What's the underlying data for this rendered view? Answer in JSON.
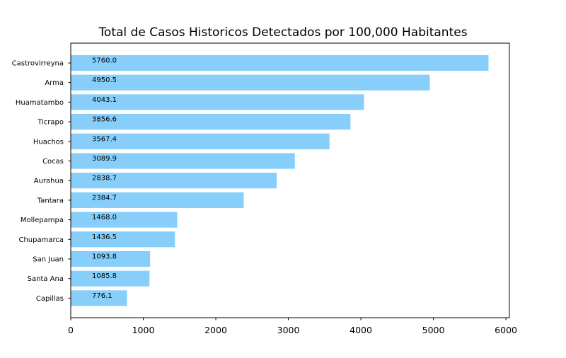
{
  "chart_data": {
    "type": "bar",
    "orientation": "horizontal",
    "title": "Total de Casos Historicos Detectados por 100,000 Habitantes",
    "xlabel": "",
    "ylabel": "",
    "categories": [
      "Castrovirreyna",
      "Arma",
      "Huamatambo",
      "Ticrapo",
      "Huachos",
      "Cocas",
      "Aurahua",
      "Tantara",
      "Mollepampa",
      "Chupamarca",
      "San Juan",
      "Santa Ana",
      "Capillas"
    ],
    "values": [
      5760.0,
      4950.5,
      4043.1,
      3856.6,
      3567.4,
      3089.9,
      2838.7,
      2384.7,
      1468.0,
      1436.5,
      1093.8,
      1085.8,
      776.1
    ],
    "data_labels": [
      "5760.0",
      "4950.5",
      "4043.1",
      "3856.6",
      "3567.4",
      "3089.9",
      "2838.7",
      "2384.7",
      "1468.0",
      "1436.5",
      "1093.8",
      "1085.8",
      "776.1"
    ],
    "xlim": [
      0,
      6048
    ],
    "xticks": [
      0,
      1000,
      2000,
      3000,
      4000,
      5000,
      6000
    ],
    "xtick_labels": [
      "0",
      "1000",
      "2000",
      "3000",
      "4000",
      "5000",
      "6000"
    ],
    "bar_color": "#87cefa",
    "grid": false,
    "legend": "none"
  }
}
